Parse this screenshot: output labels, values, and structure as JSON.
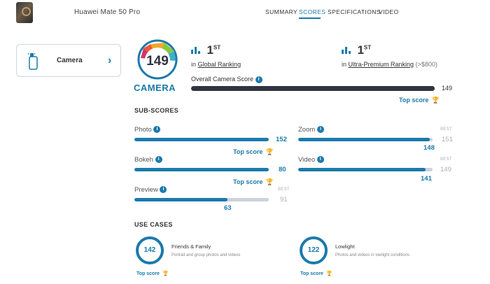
{
  "header": {
    "phone_name": "Huawei Mate 50 Pro",
    "nav": [
      "SUMMARY",
      "SCORES",
      "SPECIFICATIONS",
      "VIDEO"
    ],
    "active_tab": "SCORES"
  },
  "card": {
    "label": "Camera",
    "icon": "phone-camera-icon"
  },
  "badge": {
    "score": "149",
    "word": "CAMERA"
  },
  "rankings": {
    "global": {
      "rank": "1",
      "suffix": "ST",
      "in": "in",
      "label": "Global Ranking"
    },
    "segment": {
      "rank": "1",
      "suffix": "ST",
      "in": "in",
      "label": "Ultra-Premium Ranking",
      "range": "(>$800)"
    }
  },
  "overall": {
    "label": "Overall Camera Score",
    "value": "149",
    "fraction": 1.0,
    "top_score": "Top score"
  },
  "subscores_title": "SUB-SCORES",
  "subscores": {
    "photo": {
      "label": "Photo",
      "value": "152",
      "best": "",
      "fraction": 1.0,
      "top_score": "Top score"
    },
    "zoom": {
      "label": "Zoom",
      "value": "148",
      "best_label": "BEST",
      "best": "151",
      "fraction": 0.98
    },
    "bokeh": {
      "label": "Bokeh",
      "value": "80",
      "fraction": 1.0,
      "top_score": "Top score"
    },
    "video": {
      "label": "Video",
      "value": "141",
      "best_label": "BEST",
      "best": "149",
      "fraction": 0.946
    },
    "preview": {
      "label": "Preview",
      "value": "63",
      "best_label": "BEST",
      "best": "91",
      "fraction": 0.692
    }
  },
  "usecases_title": "USE CASES",
  "usecases": [
    {
      "score": "142",
      "title": "Friends & Family",
      "desc": "Portrait and group photos and videos",
      "top_score": "Top score"
    },
    {
      "score": "122",
      "title": "Lowlight",
      "desc": "Photos and videos in lowlight conditions",
      "top_score": "Top score"
    }
  ],
  "colors": {
    "accent": "#1a7aac",
    "dark_bar": "#2f3440",
    "track": "#cdd2da",
    "trophy": "#e3b21c"
  }
}
